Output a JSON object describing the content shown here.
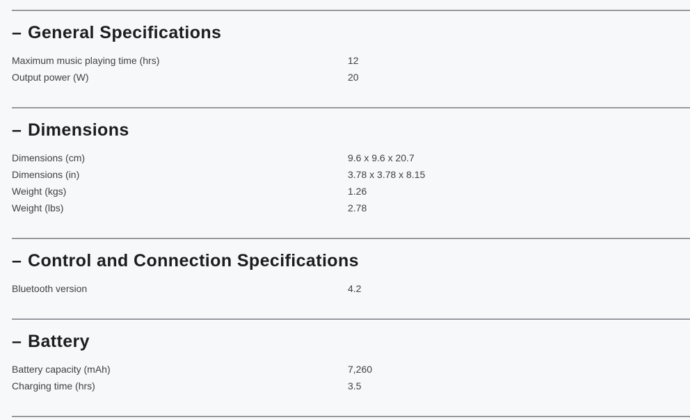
{
  "theme": {
    "background": "#f7f8f9",
    "divider_color": "#94979c",
    "divider_highlight": "#ffffff",
    "heading_color": "#1d1d1f",
    "text_color": "#3e4045"
  },
  "sections": [
    {
      "collapse_indicator": "–",
      "title": "General Specifications",
      "rows": [
        {
          "label": "Maximum music playing time (hrs)",
          "value": "12"
        },
        {
          "label": "Output power (W)",
          "value": "20"
        }
      ]
    },
    {
      "collapse_indicator": "–",
      "title": "Dimensions",
      "rows": [
        {
          "label": "Dimensions (cm)",
          "value": "9.6 x 9.6 x 20.7"
        },
        {
          "label": "Dimensions (in)",
          "value": "3.78 x 3.78 x 8.15"
        },
        {
          "label": "Weight (kgs)",
          "value": "1.26"
        },
        {
          "label": "Weight (lbs)",
          "value": "2.78"
        }
      ]
    },
    {
      "collapse_indicator": "–",
      "title": "Control and Connection Specifications",
      "rows": [
        {
          "label": "Bluetooth version",
          "value": "4.2"
        }
      ]
    },
    {
      "collapse_indicator": "–",
      "title": "Battery",
      "rows": [
        {
          "label": "Battery capacity (mAh)",
          "value": "7,260"
        },
        {
          "label": "Charging time (hrs)",
          "value": "3.5"
        }
      ]
    }
  ]
}
